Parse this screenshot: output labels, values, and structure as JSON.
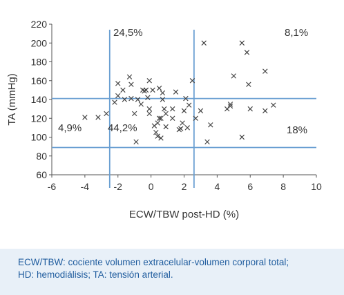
{
  "chart_data": {
    "type": "scatter",
    "xlabel": "ECW/TBW post-HD (%)",
    "ylabel": "TA (mmHg)",
    "xlim": [
      -6,
      10
    ],
    "ylim": [
      60,
      220
    ],
    "xticks": [
      -6,
      -4,
      -2,
      0,
      2,
      4,
      6,
      8,
      10
    ],
    "yticks": [
      60,
      80,
      100,
      120,
      140,
      160,
      180,
      200,
      220
    ],
    "grid": false,
    "marker": "x",
    "colors": {
      "marker": "#444444",
      "reference_lines": "#6a9fd2",
      "axis": "#555555"
    },
    "reference_lines": {
      "vertical": [
        -2.5,
        2.6
      ],
      "horizontal": [
        141,
        89
      ]
    },
    "annotations": [
      "24,5%",
      "8,1%",
      "4,9%",
      "44,2%",
      "18%"
    ],
    "points": [
      [
        -4,
        121
      ],
      [
        -3.2,
        121
      ],
      [
        -2.7,
        125
      ],
      [
        -2.2,
        137
      ],
      [
        -2,
        157
      ],
      [
        -2,
        144
      ],
      [
        -1.7,
        150
      ],
      [
        -1.6,
        140
      ],
      [
        -1.3,
        164
      ],
      [
        -1.2,
        156
      ],
      [
        -1.2,
        141
      ],
      [
        -1,
        125
      ],
      [
        -0.8,
        140
      ],
      [
        -0.6,
        135
      ],
      [
        -0.5,
        150
      ],
      [
        -0.4,
        149
      ],
      [
        -0.3,
        150
      ],
      [
        -0.2,
        142
      ],
      [
        -0.1,
        160
      ],
      [
        -0.1,
        130
      ],
      [
        -0.1,
        125
      ],
      [
        0.1,
        150
      ],
      [
        0.2,
        112
      ],
      [
        0.3,
        105
      ],
      [
        0.4,
        115
      ],
      [
        0.4,
        101
      ],
      [
        0.5,
        152
      ],
      [
        0.5,
        120
      ],
      [
        0.6,
        120
      ],
      [
        0.6,
        99
      ],
      [
        0.7,
        147
      ],
      [
        0.7,
        140
      ],
      [
        0.8,
        130
      ],
      [
        0.9,
        125
      ],
      [
        0.9,
        111
      ],
      [
        1.3,
        120
      ],
      [
        1.3,
        130
      ],
      [
        1.5,
        148
      ],
      [
        1.7,
        108
      ],
      [
        1.8,
        109
      ],
      [
        1.9,
        115
      ],
      [
        2,
        128
      ],
      [
        2.1,
        141
      ],
      [
        2.2,
        110
      ],
      [
        2.3,
        134
      ],
      [
        2.5,
        160
      ],
      [
        2.7,
        120
      ],
      [
        3,
        128
      ],
      [
        3.2,
        200
      ],
      [
        3.4,
        95
      ],
      [
        3.6,
        113
      ],
      [
        4.6,
        130
      ],
      [
        4.8,
        133
      ],
      [
        4.8,
        135
      ],
      [
        5,
        165
      ],
      [
        5.5,
        200
      ],
      [
        5.5,
        100
      ],
      [
        5.8,
        190
      ],
      [
        5.9,
        156
      ],
      [
        6,
        130
      ],
      [
        6.9,
        170
      ],
      [
        6.9,
        128
      ],
      [
        7.4,
        134
      ],
      [
        -0.9,
        95
      ]
    ]
  },
  "caption": {
    "line1": "ECW/TBW: cociente volumen extracelular-volumen corporal total;",
    "line2": "HD: hemodiálisis; TA: tensión arterial."
  }
}
